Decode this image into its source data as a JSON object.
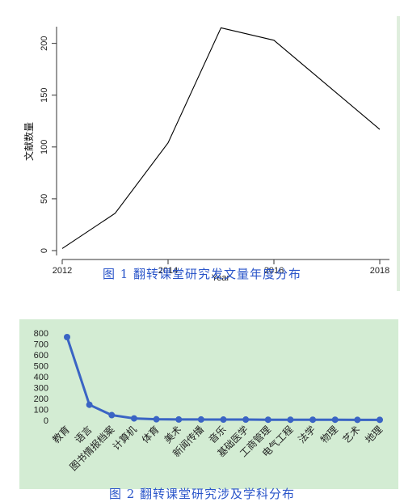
{
  "chart_data": [
    {
      "type": "line",
      "x": [
        2012,
        2013,
        2014,
        2015,
        2016,
        2017,
        2018
      ],
      "series": [
        {
          "values": [
            2,
            36,
            104,
            215,
            203,
            160,
            117
          ]
        }
      ],
      "xlabel": "Year",
      "ylabel": "文献数量",
      "xticks": [
        "2012",
        "2014",
        "2016",
        "2018"
      ],
      "yticks": [
        "0",
        "50",
        "100",
        "150",
        "200"
      ],
      "xlim": [
        2012,
        2018
      ],
      "ylim": [
        0,
        220
      ],
      "grid": false,
      "caption": "图 1 翻转课堂研究发文量年度分布",
      "line_color": "#000000"
    },
    {
      "type": "line",
      "categories": [
        "教育",
        "语言",
        "图书情报档案",
        "计算机",
        "体育",
        "美术",
        "新闻传播",
        "音乐",
        "基础医学",
        "工商管理",
        "电气工程",
        "法学",
        "物理",
        "艺术",
        "地理"
      ],
      "series": [
        {
          "values": [
            763,
            143,
            48,
            18,
            10,
            8,
            8,
            7,
            7,
            6,
            6,
            6,
            6,
            5,
            5
          ]
        }
      ],
      "yticks": [
        "0",
        "100",
        "200",
        "300",
        "400",
        "500",
        "600",
        "700",
        "800"
      ],
      "ylim": [
        0,
        800
      ],
      "grid": false,
      "caption": "图 2 翻转课堂研究涉及学科分布",
      "line_color": "#3a64c4",
      "background": "#d3ecd3"
    }
  ]
}
